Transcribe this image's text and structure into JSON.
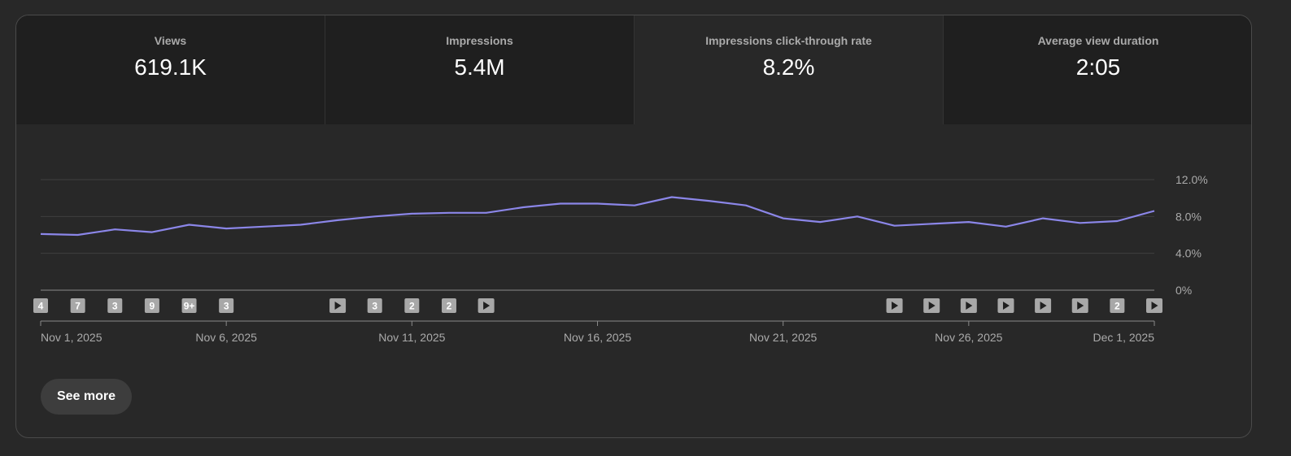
{
  "tabs": [
    {
      "label": "Views",
      "value": "619.1K"
    },
    {
      "label": "Impressions",
      "value": "5.4M"
    },
    {
      "label": "Impressions click-through rate",
      "value": "8.2%"
    },
    {
      "label": "Average view duration",
      "value": "2:05"
    }
  ],
  "active_tab": 2,
  "see_more_label": "See more",
  "colors": {
    "line": "#8b86e8",
    "grid": "#3f3f3f",
    "axis_text": "#aaaaaa",
    "marker_bg": "#a8a8a8"
  },
  "chart_data": {
    "type": "line",
    "title": "Impressions click-through rate",
    "x": [
      "Nov 1, 2025",
      "Nov 2, 2025",
      "Nov 3, 2025",
      "Nov 4, 2025",
      "Nov 5, 2025",
      "Nov 6, 2025",
      "Nov 7, 2025",
      "Nov 8, 2025",
      "Nov 9, 2025",
      "Nov 10, 2025",
      "Nov 11, 2025",
      "Nov 12, 2025",
      "Nov 13, 2025",
      "Nov 14, 2025",
      "Nov 15, 2025",
      "Nov 16, 2025",
      "Nov 17, 2025",
      "Nov 18, 2025",
      "Nov 19, 2025",
      "Nov 20, 2025",
      "Nov 21, 2025",
      "Nov 22, 2025",
      "Nov 23, 2025",
      "Nov 24, 2025",
      "Nov 25, 2025",
      "Nov 26, 2025",
      "Nov 27, 2025",
      "Nov 28, 2025",
      "Nov 29, 2025",
      "Nov 30, 2025",
      "Dec 1, 2025"
    ],
    "series": [
      {
        "name": "Impressions click-through rate (%)",
        "values": [
          6.1,
          6.0,
          6.6,
          6.3,
          7.1,
          6.7,
          6.9,
          7.1,
          7.6,
          8.0,
          8.3,
          8.4,
          8.4,
          9.0,
          9.4,
          9.4,
          9.2,
          10.1,
          9.7,
          9.2,
          7.8,
          7.4,
          8.0,
          7.0,
          7.2,
          7.4,
          6.9,
          7.8,
          7.3,
          7.5,
          8.6
        ]
      }
    ],
    "x_tick_labels": [
      "Nov 1, 2025",
      "Nov 6, 2025",
      "Nov 11, 2025",
      "Nov 16, 2025",
      "Nov 21, 2025",
      "Nov 26, 2025",
      "Dec 1, 2025"
    ],
    "x_tick_days": [
      0,
      5,
      10,
      15,
      20,
      25,
      30
    ],
    "y_ticks": [
      "0%",
      "4.0%",
      "8.0%",
      "12.0%"
    ],
    "y_tick_values": [
      0,
      4,
      8,
      12
    ],
    "ylim": [
      0,
      12
    ],
    "grid": true,
    "y_axis_side": "right",
    "markers": [
      {
        "day": 0,
        "label": "4"
      },
      {
        "day": 1,
        "label": "7"
      },
      {
        "day": 2,
        "label": "3"
      },
      {
        "day": 3,
        "label": "9"
      },
      {
        "day": 4,
        "label": "9+"
      },
      {
        "day": 5,
        "label": "3"
      },
      {
        "day": 8,
        "label": "play"
      },
      {
        "day": 9,
        "label": "3"
      },
      {
        "day": 10,
        "label": "2"
      },
      {
        "day": 11,
        "label": "2"
      },
      {
        "day": 12,
        "label": "play"
      },
      {
        "day": 23,
        "label": "play"
      },
      {
        "day": 24,
        "label": "play"
      },
      {
        "day": 25,
        "label": "play"
      },
      {
        "day": 26,
        "label": "play"
      },
      {
        "day": 27,
        "label": "play"
      },
      {
        "day": 28,
        "label": "play"
      },
      {
        "day": 29,
        "label": "2"
      },
      {
        "day": 30,
        "label": "play"
      }
    ]
  }
}
